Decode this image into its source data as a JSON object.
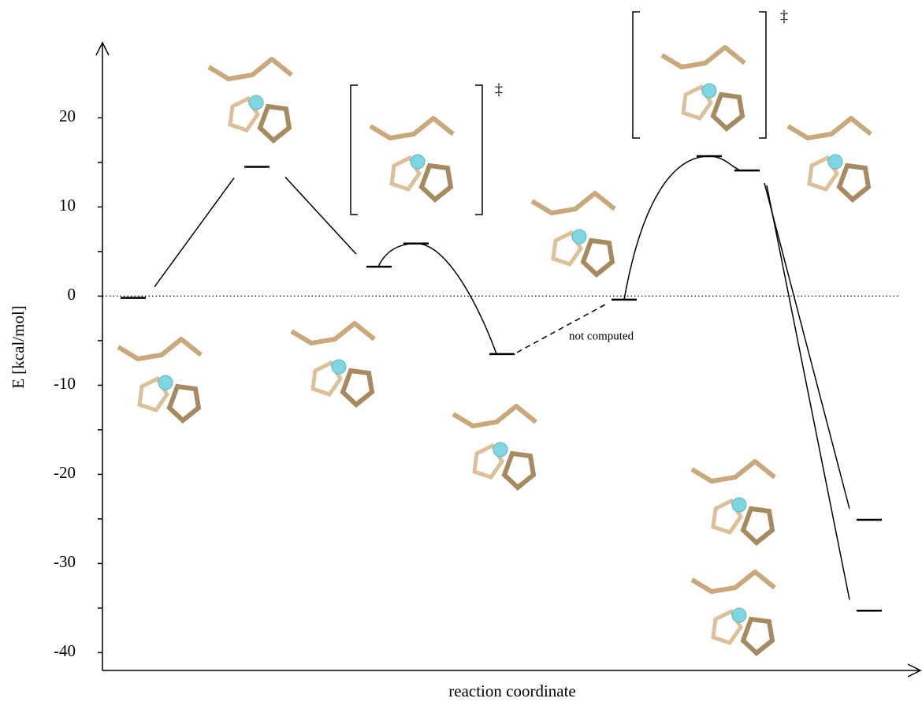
{
  "chart_data": {
    "type": "energylevel",
    "ylabel": "E [kcal/mol]",
    "xlabel": "reaction coordinate",
    "values": [
      -0.2,
      14.5,
      3.3,
      5.9,
      -6.5,
      -0.4,
      15.7,
      14.1,
      -25.1,
      -35.3
    ],
    "ylim": [
      -42,
      28
    ],
    "yticks": [
      -40,
      -30,
      -20,
      -10,
      0,
      10,
      20
    ],
    "yminorticks": [
      -35,
      -25,
      -15,
      -5,
      5,
      15
    ],
    "zero_line": true,
    "annotations": [
      "not computed",
      "‡",
      "‡"
    ]
  }
}
